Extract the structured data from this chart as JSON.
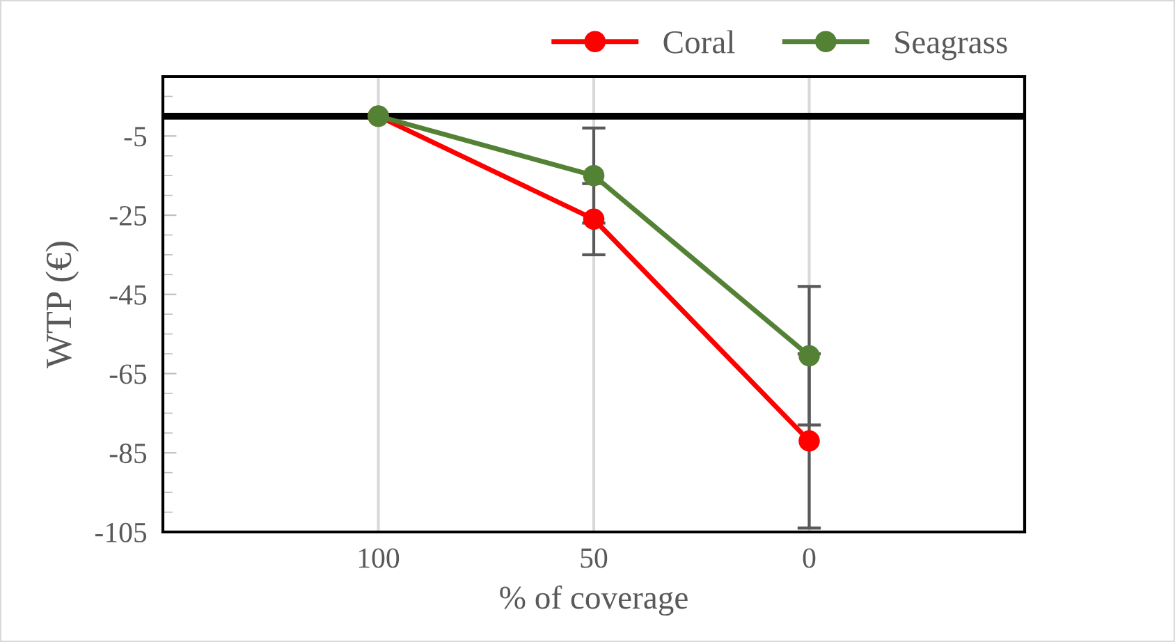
{
  "chart_data": {
    "type": "line",
    "xlabel": "% of coverage",
    "ylabel": "WTP (€)",
    "x": [
      100,
      50,
      0
    ],
    "series": [
      {
        "name": "Coral",
        "color": "#ff0000",
        "values": [
          0,
          -26,
          -82
        ],
        "errors": [
          null,
          9,
          22
        ]
      },
      {
        "name": "Seagrass",
        "color": "#548235",
        "values": [
          0,
          -15,
          -60.5
        ],
        "errors": [
          null,
          12,
          17.5
        ]
      }
    ],
    "xlim": [
      150,
      -50
    ],
    "xticks": [
      100,
      50,
      0
    ],
    "ylim": [
      -105,
      10
    ],
    "yticks": [
      -105,
      -85,
      -65,
      -45,
      -25,
      -5
    ],
    "ref_lines": [
      {
        "axis": "y",
        "value": 0,
        "color": "#000000"
      }
    ],
    "grid": "x",
    "legend": "top right",
    "marker": "circle",
    "line_style": "solid"
  }
}
